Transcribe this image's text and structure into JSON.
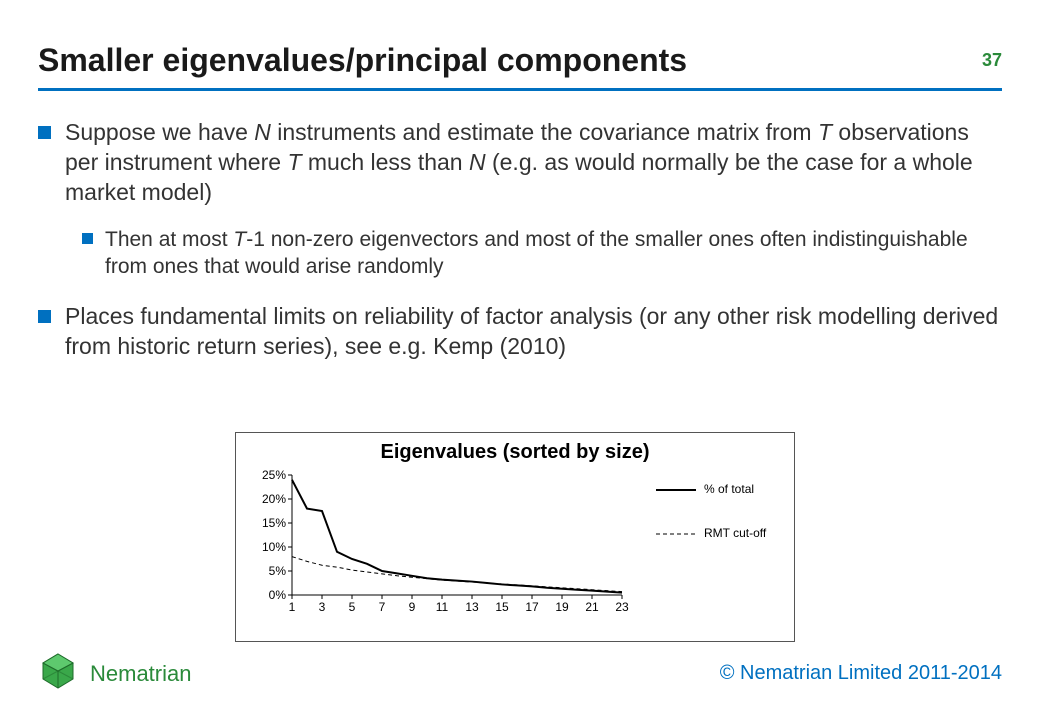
{
  "colors": {
    "accent": "#0070c0",
    "pagenum": "#2a8a3a",
    "text": "#333333",
    "chart_border": "#555555",
    "axis": "#000000",
    "grid": "#cccccc",
    "brand": "#2a8a3a",
    "copyright": "#0070c0"
  },
  "header": {
    "title": "Smaller eigenvalues/principal components",
    "page_number": "37"
  },
  "bullets": [
    {
      "level": 1,
      "runs": [
        {
          "t": "Suppose we have "
        },
        {
          "t": "N",
          "i": true
        },
        {
          "t": " instruments and estimate the covariance matrix from "
        },
        {
          "t": "T",
          "i": true
        },
        {
          "t": " observations per instrument where "
        },
        {
          "t": "T",
          "i": true
        },
        {
          "t": " much less than "
        },
        {
          "t": "N",
          "i": true
        },
        {
          "t": " (e.g. as would normally be the case for a whole market model)"
        }
      ]
    },
    {
      "level": 2,
      "runs": [
        {
          "t": "Then at most "
        },
        {
          "t": "T",
          "i": true
        },
        {
          "t": "-1 non-zero eigenvectors and most of the smaller ones often indistinguishable from ones that would arise randomly"
        }
      ]
    },
    {
      "level": 1,
      "runs": [
        {
          "t": "Places fundamental limits on reliability of factor analysis (or any other risk modelling derived from historic return series), see e.g. Kemp (2010)"
        }
      ]
    }
  ],
  "chart": {
    "type": "line",
    "title": "Eigenvalues (sorted by size)",
    "title_fontsize": 20,
    "xlim": [
      1,
      23
    ],
    "ylim": [
      0,
      25
    ],
    "xticks": [
      1,
      3,
      5,
      7,
      9,
      11,
      13,
      15,
      17,
      19,
      21,
      23
    ],
    "yticks": [
      0,
      5,
      10,
      15,
      20,
      25
    ],
    "ytick_labels": [
      "0%",
      "5%",
      "10%",
      "15%",
      "20%",
      "25%"
    ],
    "axis_color": "#000000",
    "background": "#ffffff",
    "series": [
      {
        "name": "% of total",
        "color": "#000000",
        "width": 2,
        "dash": "none",
        "x": [
          1,
          2,
          3,
          4,
          5,
          6,
          7,
          8,
          9,
          10,
          11,
          12,
          13,
          14,
          15,
          16,
          17,
          18,
          19,
          20,
          21,
          22,
          23
        ],
        "y": [
          24,
          18,
          17.5,
          9,
          7.5,
          6.5,
          5,
          4.5,
          4,
          3.5,
          3.2,
          3,
          2.8,
          2.5,
          2.2,
          2,
          1.8,
          1.5,
          1.3,
          1.1,
          0.9,
          0.7,
          0.5
        ]
      },
      {
        "name": "RMT cut-off",
        "color": "#000000",
        "width": 1,
        "dash": "4 3",
        "x": [
          1,
          2,
          3,
          4,
          5,
          6,
          7,
          8,
          9,
          10,
          11,
          12,
          13,
          14,
          15,
          16,
          17,
          18,
          19,
          20,
          21,
          22,
          23
        ],
        "y": [
          8,
          7,
          6.2,
          5.8,
          5.2,
          4.8,
          4.4,
          4,
          3.7,
          3.4,
          3.1,
          2.9,
          2.7,
          2.5,
          2.3,
          2.1,
          1.9,
          1.7,
          1.5,
          1.3,
          1.1,
          0.9,
          0.7
        ]
      }
    ],
    "legend": {
      "items": [
        {
          "label": "% of total",
          "dash": "none",
          "width": 2
        },
        {
          "label": "RMT cut-off",
          "dash": "4 3",
          "width": 1
        }
      ]
    }
  },
  "footer": {
    "brand": "Nematrian",
    "brand_color": "#2a8a3a",
    "copyright": "© Nematrian Limited 2011-2014"
  }
}
